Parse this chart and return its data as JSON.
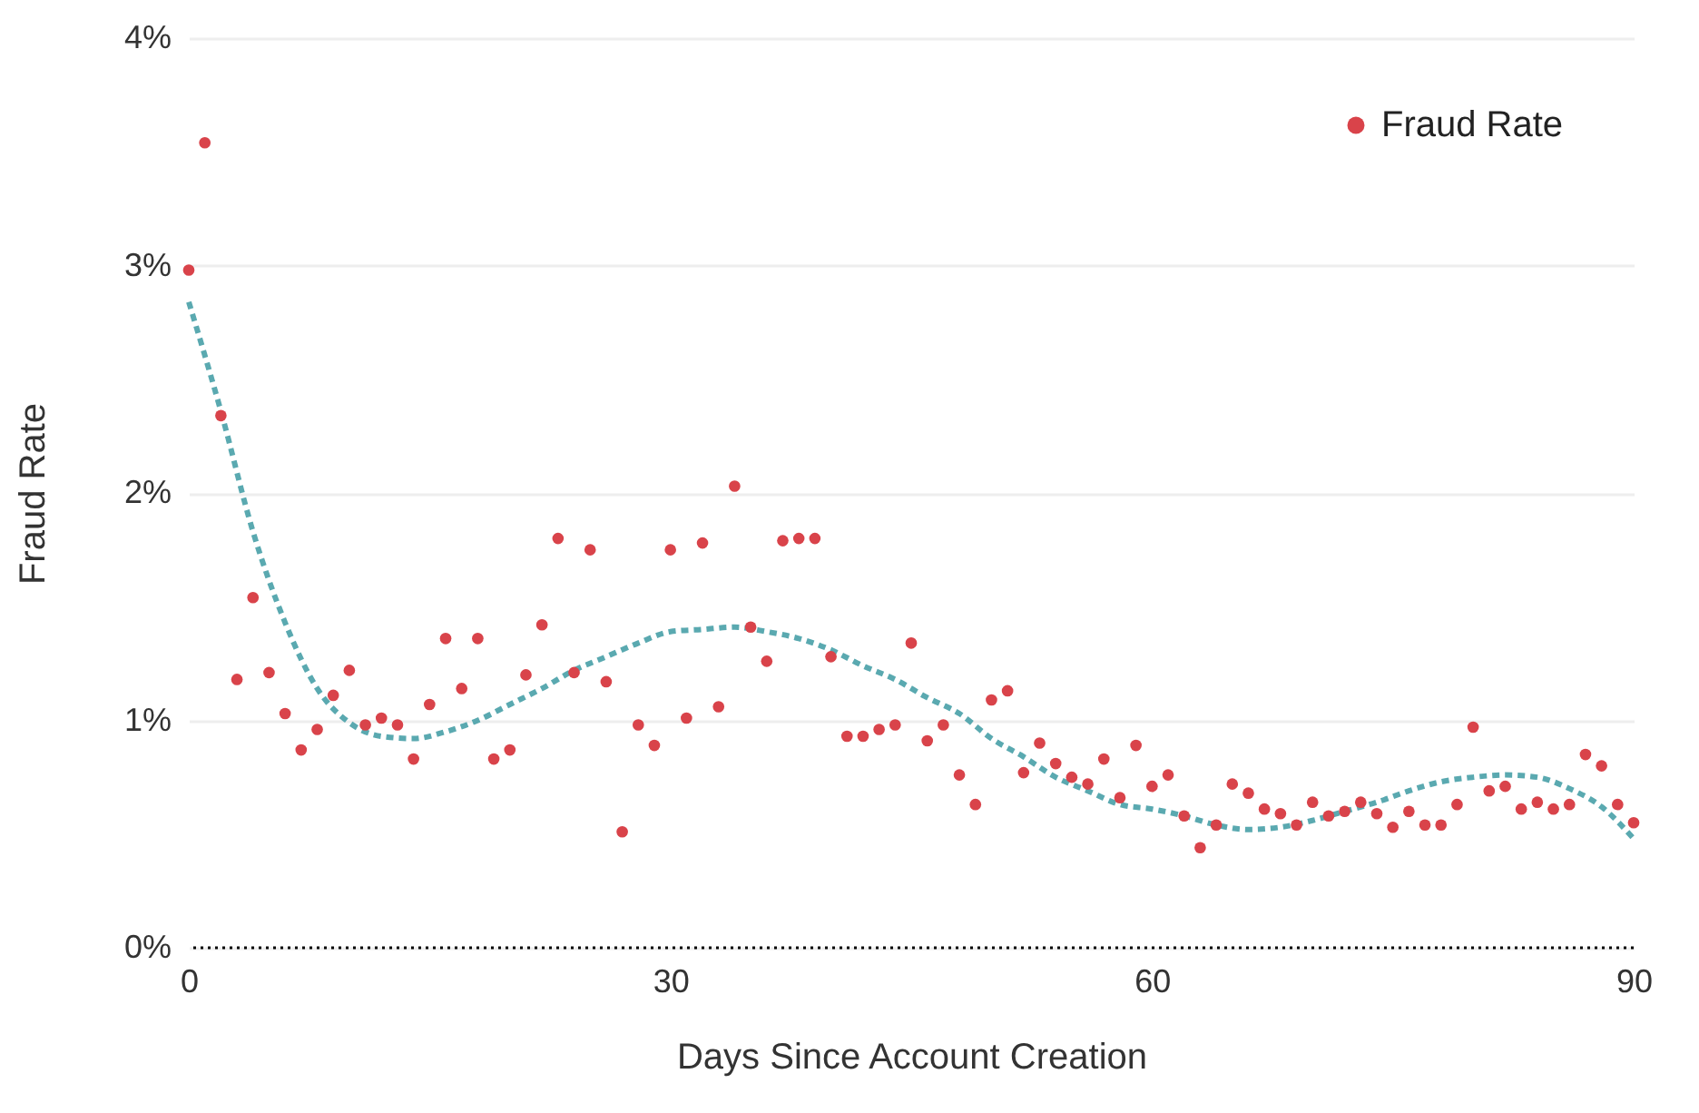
{
  "chart_data": {
    "type": "scatter",
    "xlabel": "Days Since Account Creation",
    "ylabel": "Fraud Rate",
    "x": [
      0,
      1,
      2,
      3,
      4,
      5,
      6,
      7,
      8,
      9,
      10,
      11,
      12,
      13,
      14,
      15,
      16,
      17,
      18,
      19,
      20,
      21,
      22,
      23,
      24,
      25,
      26,
      27,
      28,
      29,
      30,
      31,
      32,
      33,
      34,
      35,
      36,
      37,
      38,
      39,
      40,
      41,
      42,
      43,
      44,
      45,
      46,
      47,
      48,
      49,
      50,
      51,
      52,
      53,
      54,
      55,
      56,
      57,
      58,
      59,
      60,
      61,
      62,
      63,
      64,
      65,
      66,
      67,
      68,
      69,
      70,
      71,
      72,
      73,
      74,
      75,
      76,
      77,
      78,
      79,
      80,
      81,
      82,
      83,
      84,
      85,
      86,
      87,
      88,
      89,
      90
    ],
    "series": [
      {
        "name": "Fraud Rate",
        "marker": "circle",
        "color": "#d9434a",
        "values": [
          2.98,
          3.54,
          2.34,
          1.18,
          1.54,
          1.21,
          1.03,
          0.87,
          0.96,
          1.11,
          1.22,
          0.98,
          1.01,
          0.98,
          0.83,
          1.07,
          1.36,
          1.14,
          1.36,
          0.83,
          0.87,
          1.2,
          1.42,
          1.8,
          1.21,
          1.75,
          1.17,
          0.51,
          0.98,
          0.89,
          1.75,
          1.01,
          1.78,
          1.06,
          2.03,
          1.41,
          1.26,
          1.79,
          1.8,
          1.8,
          1.28,
          0.93,
          0.93,
          0.96,
          0.98,
          1.34,
          0.91,
          0.98,
          0.76,
          0.63,
          1.09,
          1.13,
          0.77,
          0.9,
          0.81,
          0.75,
          0.72,
          0.83,
          0.66,
          0.89,
          0.71,
          0.76,
          0.58,
          0.44,
          0.54,
          0.72,
          0.68,
          0.61,
          0.59,
          0.54,
          0.64,
          0.58,
          0.6,
          0.64,
          0.59,
          0.53,
          0.6,
          0.54,
          0.54,
          0.63,
          0.97,
          0.69,
          0.71,
          0.61,
          0.64,
          0.61,
          0.63,
          0.85,
          0.8,
          0.63,
          0.55
        ]
      },
      {
        "type": "line",
        "color": "#5aa9b0",
        "line_style": "dashed",
        "x": [
          0,
          2,
          4,
          6,
          8,
          10,
          12,
          14,
          16,
          18,
          20,
          22,
          24,
          26,
          28,
          30,
          32,
          34,
          36,
          38,
          40,
          42,
          44,
          46,
          48,
          50,
          52,
          54,
          56,
          58,
          60,
          62,
          64,
          66,
          68,
          70,
          72,
          74,
          76,
          78,
          80,
          82,
          84,
          86,
          88,
          90
        ],
        "values": [
          2.84,
          2.36,
          1.83,
          1.43,
          1.14,
          0.99,
          0.93,
          0.92,
          0.95,
          1.0,
          1.07,
          1.14,
          1.22,
          1.28,
          1.34,
          1.39,
          1.4,
          1.41,
          1.39,
          1.36,
          1.31,
          1.24,
          1.18,
          1.1,
          1.03,
          0.92,
          0.84,
          0.75,
          0.69,
          0.63,
          0.61,
          0.58,
          0.54,
          0.52,
          0.53,
          0.56,
          0.6,
          0.64,
          0.69,
          0.73,
          0.75,
          0.76,
          0.75,
          0.7,
          0.62,
          0.48
        ]
      }
    ],
    "xlim": [
      0,
      90
    ],
    "xticks": [
      0,
      30,
      60,
      90
    ],
    "ylim": [
      0,
      4
    ],
    "yticks": [
      {
        "value": 0,
        "label": "0%"
      },
      {
        "value": 1,
        "label": "1%"
      },
      {
        "value": 2,
        "label": "2%"
      },
      {
        "value": 3,
        "label": "3%"
      },
      {
        "value": 4,
        "label": "4%"
      }
    ],
    "ref_lines": [
      {
        "axis": "y",
        "value": 0,
        "color": "#000000",
        "line_style": "dotted"
      }
    ],
    "grid": "y",
    "legend": "top right"
  }
}
